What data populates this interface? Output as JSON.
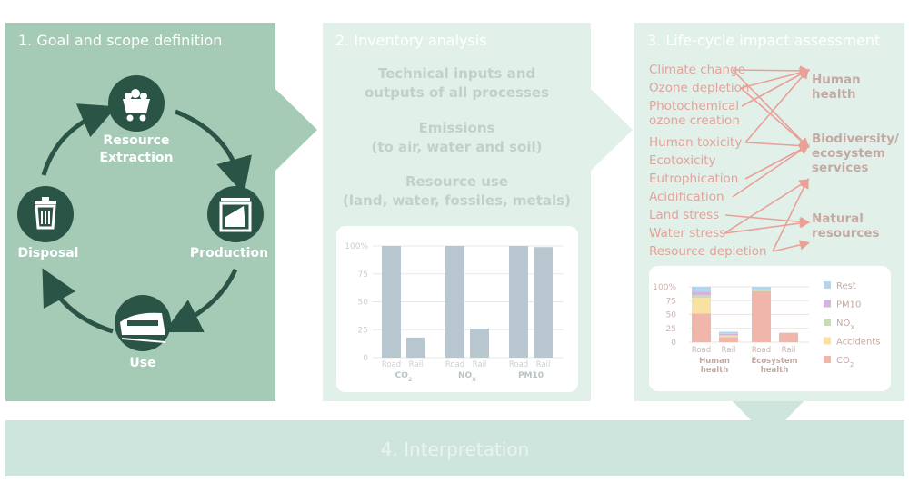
{
  "panel1": {
    "title": "1. Goal and scope definition",
    "nodes": {
      "extraction": "Resource\nExtraction",
      "production": "Production",
      "use": "Use",
      "disposal": "Disposal"
    }
  },
  "panel2": {
    "title": "2. Inventory analysis",
    "items": [
      "Technical inputs and\noutputs of all processes",
      "Emissions\n(to air, water and soil)",
      "Resource use\n(land, water, fossiles, metals)"
    ]
  },
  "panel3": {
    "title": "3. Life-cycle impact assessment",
    "impacts": [
      "Climate change",
      "Ozone depletion",
      "Photochemical\nozone creation",
      "Human toxicity",
      "Ecotoxicity",
      "Eutrophication",
      "Acidification",
      "Land stress",
      "Water stress",
      "Resource depletion"
    ],
    "categories": [
      "Human\nhealth",
      "Biodiversity/\necosystem\nservices",
      "Natural\nresources"
    ]
  },
  "panel4": {
    "title": "4. Interpretation"
  },
  "colors": {
    "panel1_bg": "#a5cbb7",
    "panel_light_bg": "#e2f0ea",
    "node_dark": "#2a5445",
    "inventory_bar": "#b7c6cf",
    "impact_arrow": "#e8a097"
  },
  "chart_data": [
    {
      "type": "bar",
      "ylim": [
        0,
        100
      ],
      "yticks": [
        "0",
        "25",
        "50",
        "75",
        "100%"
      ],
      "groups": [
        {
          "label": "CO2",
          "label_main": "CO",
          "label_sub": "2",
          "bars": [
            {
              "label": "Road",
              "value": 100
            },
            {
              "label": "Rail",
              "value": 18
            }
          ]
        },
        {
          "label": "NOX",
          "label_main": "NO",
          "label_sub": "X",
          "bars": [
            {
              "label": "Road",
              "value": 100
            },
            {
              "label": "Rail",
              "value": 26
            }
          ]
        },
        {
          "label": "PM10",
          "label_main": "PM10",
          "label_sub": "",
          "bars": [
            {
              "label": "Road",
              "value": 100
            },
            {
              "label": "Rail",
              "value": 99
            }
          ]
        }
      ]
    },
    {
      "type": "bar",
      "stacked": true,
      "ylim": [
        0,
        100
      ],
      "yticks": [
        "0",
        "25",
        "50",
        "75",
        "100%"
      ],
      "legend_position": "right",
      "series": [
        {
          "name": "CO2",
          "name_main": "CO",
          "name_sub": "2",
          "color": "#f0b6ab"
        },
        {
          "name": "Accidents",
          "name_main": "Accidents",
          "name_sub": "",
          "color": "#f9e1a3"
        },
        {
          "name": "NOX",
          "name_main": "NO",
          "name_sub": "X",
          "color": "#c9dbb4"
        },
        {
          "name": "PM10",
          "name_main": "PM10",
          "name_sub": "",
          "color": "#d6b2e0"
        },
        {
          "name": "Rest",
          "name_main": "Rest",
          "name_sub": "",
          "color": "#b2d7ec"
        }
      ],
      "groups": [
        {
          "label": "Human\nhealth",
          "bars": [
            {
              "label": "Road",
              "values": [
                52,
                28,
                5,
                6,
                9
              ]
            },
            {
              "label": "Rail",
              "values": [
                9,
                2,
                2,
                2,
                4
              ]
            }
          ]
        },
        {
          "label": "Ecosystem\nhealth",
          "bars": [
            {
              "label": "Road",
              "values": [
                92,
                0,
                2,
                1,
                5
              ]
            },
            {
              "label": "Rail",
              "values": [
                17,
                0,
                0,
                0,
                0
              ]
            }
          ]
        }
      ]
    }
  ]
}
